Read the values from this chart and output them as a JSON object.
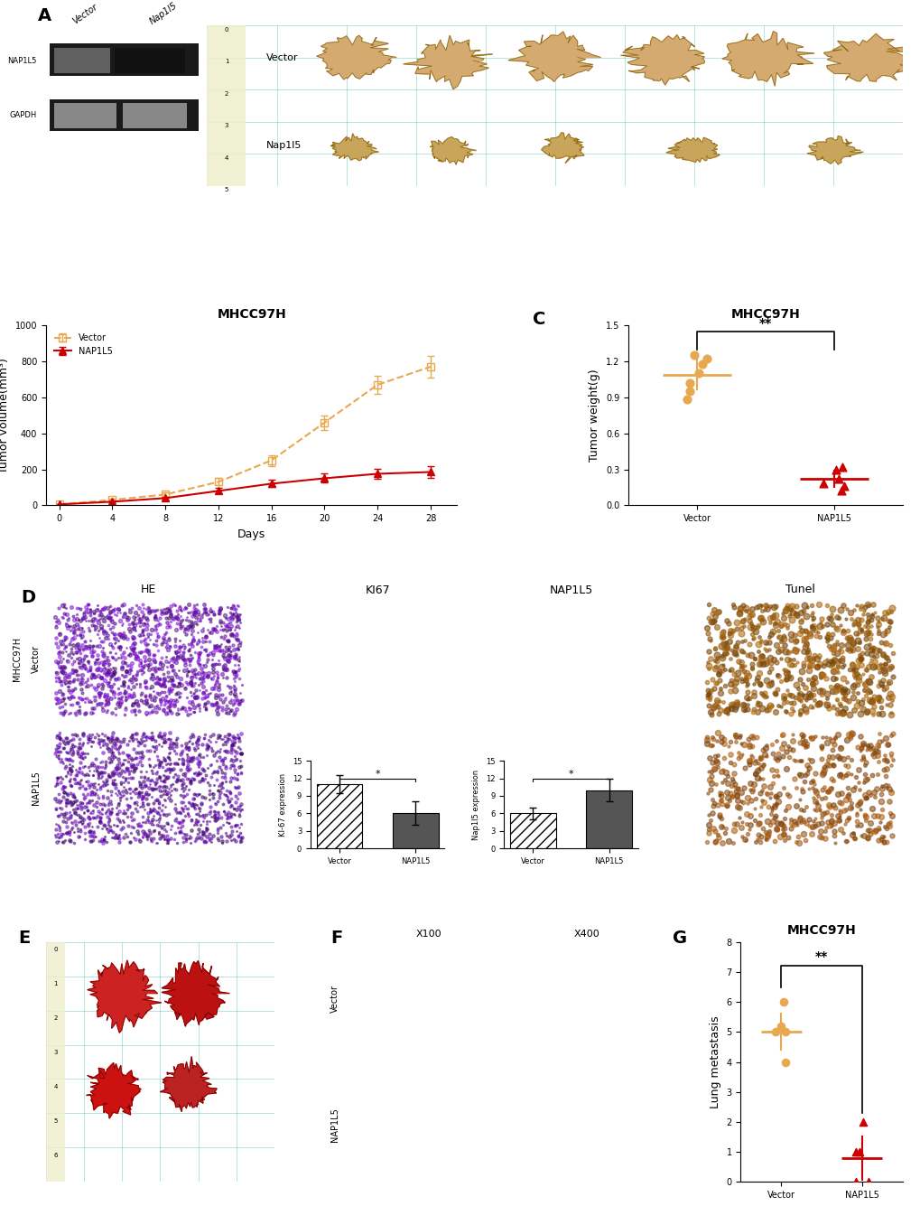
{
  "panel_B": {
    "title": "MHCC97H",
    "xlabel": "Days",
    "ylabel": "Tumor volume(mm³)",
    "days": [
      0,
      4,
      8,
      12,
      16,
      20,
      24,
      28
    ],
    "vector_mean": [
      5,
      30,
      60,
      130,
      250,
      460,
      670,
      770
    ],
    "vector_err": [
      2,
      8,
      12,
      20,
      30,
      40,
      50,
      60
    ],
    "nap1l5_mean": [
      5,
      20,
      40,
      80,
      120,
      150,
      175,
      185
    ],
    "nap1l5_err": [
      2,
      5,
      8,
      15,
      20,
      25,
      30,
      35
    ],
    "ylim": [
      0,
      1000
    ],
    "yticks": [
      0,
      200,
      400,
      600,
      800,
      1000
    ],
    "vector_color": "#E8A850",
    "nap1l5_color": "#CC0000",
    "vector_label": "Vector",
    "nap1l5_label": "NAP1L5"
  },
  "panel_C": {
    "title": "MHCC97H",
    "xlabel": "",
    "ylabel": "Tumor weight(g)",
    "categories": [
      "Vector",
      "NAP1L5"
    ],
    "vector_points": [
      1.25,
      1.22,
      1.18,
      1.1,
      1.02,
      0.95,
      0.88
    ],
    "nap1l5_points": [
      0.32,
      0.3,
      0.22,
      0.18,
      0.16,
      0.12
    ],
    "vector_mean": 1.09,
    "nap1l5_mean": 0.22,
    "ylim": [
      0,
      1.5
    ],
    "yticks": [
      0.0,
      0.3,
      0.6,
      0.9,
      1.2,
      1.5
    ],
    "vector_color": "#E8A850",
    "nap1l5_color": "#CC0000",
    "sig_text": "**"
  },
  "panel_D_bar1": {
    "title": "",
    "ylabel": "KI-67 expression",
    "categories": [
      "Vector",
      "NAP1L5"
    ],
    "values": [
      11,
      6
    ],
    "errors": [
      1.5,
      2.0
    ],
    "ylim": [
      0,
      15
    ],
    "yticks": [
      0,
      3,
      6,
      9,
      12,
      15
    ],
    "bar_colors": [
      "white",
      "#555555"
    ],
    "sig_text": "*",
    "hatch1": "///",
    "hatch2": ""
  },
  "panel_D_bar2": {
    "title": "",
    "ylabel": "Nap1l5 expression",
    "categories": [
      "Vector",
      "NAP1L5"
    ],
    "values": [
      6,
      10
    ],
    "errors": [
      1.0,
      2.0
    ],
    "ylim": [
      0,
      15
    ],
    "yticks": [
      0,
      3,
      6,
      9,
      12,
      15
    ],
    "bar_colors": [
      "white",
      "#555555"
    ],
    "sig_text": "*",
    "hatch1": "///",
    "hatch2": ""
  },
  "panel_G": {
    "title": "MHCC97H",
    "ylabel": "Lung metastasis",
    "categories": [
      "Vector",
      "NAP1L5"
    ],
    "vector_points": [
      6.0,
      5.2,
      5.0,
      5.0,
      4.0
    ],
    "nap1l5_points": [
      2.0,
      1.0,
      1.0,
      0.0,
      0.0
    ],
    "vector_mean": 5.0,
    "nap1l5_mean": 0.8,
    "ylim": [
      0,
      8
    ],
    "yticks": [
      0,
      1,
      2,
      3,
      4,
      5,
      6,
      7,
      8
    ],
    "vector_color": "#E8A850",
    "nap1l5_color": "#CC0000",
    "sig_text": "**"
  },
  "photo_panel_A_bg": "#2a8a7e",
  "photo_panel_E_bg": "#2a8a7e",
  "label_color": "#000000",
  "label_fontsize": 14,
  "axis_fontsize": 9,
  "title_fontsize": 10
}
